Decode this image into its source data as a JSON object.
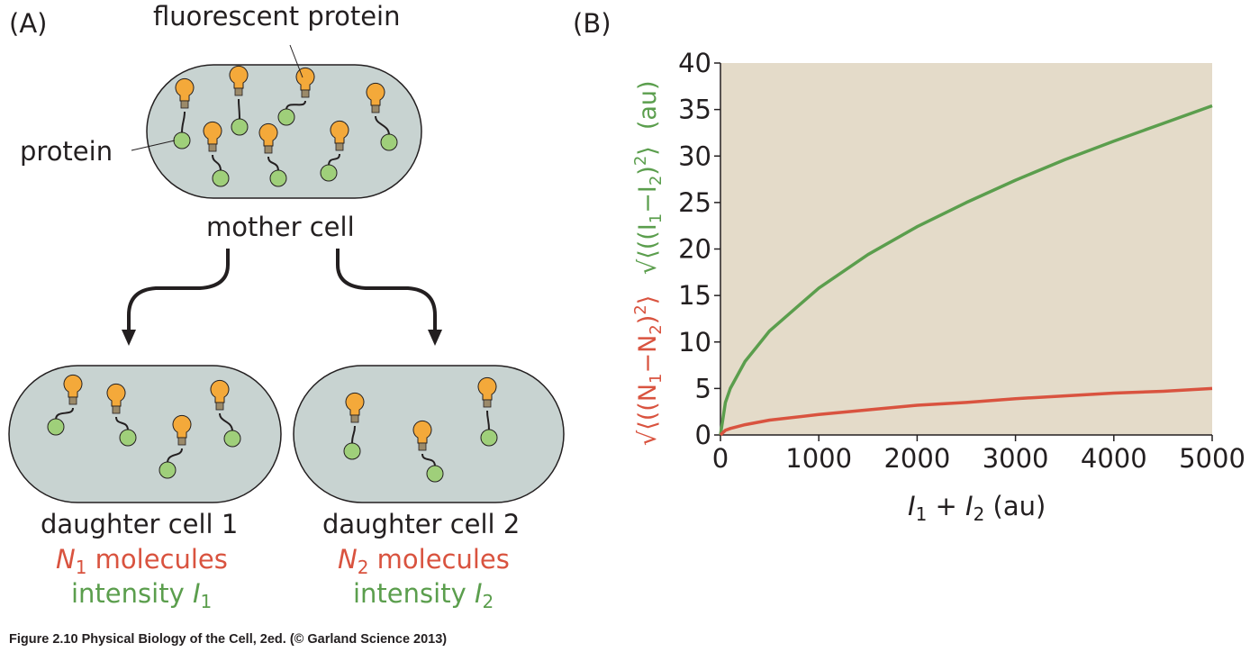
{
  "panels": {
    "a_label": "(A)",
    "b_label": "(B)"
  },
  "diagram": {
    "fluorescent_label": "fluorescent protein",
    "protein_label": "protein",
    "mother_label": "mother cell",
    "daughter1": {
      "title": "daughter cell 1",
      "molecules_var": "N",
      "molecules_sub": "1",
      "molecules_text": " molecules",
      "intensity_text": "intensity ",
      "intensity_var": "I",
      "intensity_sub": "1"
    },
    "daughter2": {
      "title": "daughter cell 2",
      "molecules_var": "N",
      "molecules_sub": "2",
      "molecules_text": " molecules",
      "intensity_text": "intensity ",
      "intensity_var": "I",
      "intensity_sub": "2"
    },
    "colors": {
      "cell_fill": "#c8d3d1",
      "bulb": "#f4a93a",
      "ball": "#9fcf7a",
      "arrow": "#231f20"
    }
  },
  "chart_data": {
    "type": "line",
    "xlim": [
      0,
      5000
    ],
    "ylim": [
      0,
      40
    ],
    "x_ticks": [
      "0",
      "1000",
      "2000",
      "3000",
      "4000",
      "5000"
    ],
    "y_ticks": [
      "0",
      "5",
      "10",
      "15",
      "20",
      "25",
      "30",
      "35",
      "40"
    ],
    "xlabel": {
      "v1": "I",
      "s1": "1",
      "plus": " + ",
      "v2": "I",
      "s2": "2",
      "unit": " (au)"
    },
    "ylabel_green": {
      "a": "((I",
      "s1": "1",
      "b": "−I",
      "s2": "2",
      "c": ")",
      "sup": "2",
      "unit": "(au)"
    },
    "ylabel_red": {
      "a": "((N",
      "s1": "1",
      "b": "−N",
      "s2": "2",
      "c": ")",
      "sup": "2"
    },
    "plot_bg": "#e4dbc9",
    "series": [
      {
        "color": "#5b9e4d",
        "x": [
          0,
          50,
          100,
          250,
          500,
          1000,
          1500,
          2000,
          2500,
          3000,
          3500,
          4000,
          4500,
          5000
        ],
        "y": [
          0,
          3.5,
          5.0,
          7.9,
          11.2,
          15.8,
          19.4,
          22.4,
          25.0,
          27.4,
          29.6,
          31.6,
          33.5,
          35.4
        ]
      },
      {
        "color": "#d9533f",
        "x": [
          0,
          50,
          100,
          250,
          500,
          1000,
          1500,
          2000,
          2500,
          3000,
          3500,
          4000,
          4500,
          5000
        ],
        "y": [
          0,
          0.5,
          0.7,
          1.1,
          1.6,
          2.2,
          2.7,
          3.2,
          3.5,
          3.9,
          4.2,
          4.5,
          4.7,
          5.0
        ]
      }
    ]
  },
  "caption": {
    "prefix": "Figure 2.10",
    "text": "  Physical Biology of the Cell, 2ed. (© Garland Science 2013)"
  }
}
